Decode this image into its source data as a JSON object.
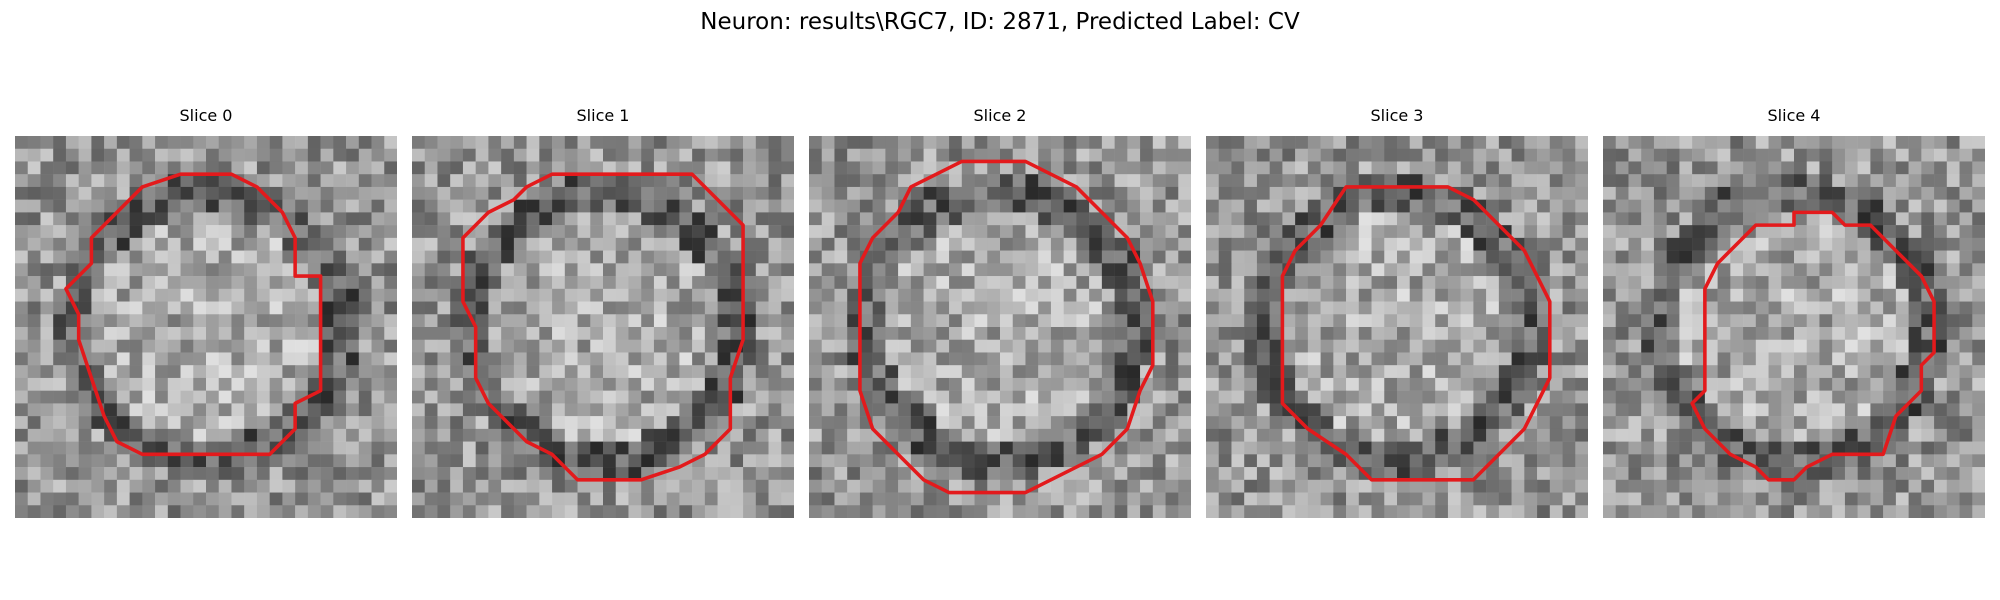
{
  "figure": {
    "title": "Neuron: results\\RGC7, ID: 2871, Predicted Label: CV"
  },
  "panels": [
    {
      "title": "Slice 0"
    },
    {
      "title": "Slice 1"
    },
    {
      "title": "Slice 2"
    },
    {
      "title": "Slice 3"
    },
    {
      "title": "Slice 4"
    }
  ],
  "colors": {
    "contour": "#e31a1c",
    "background": "#ffffff"
  }
}
